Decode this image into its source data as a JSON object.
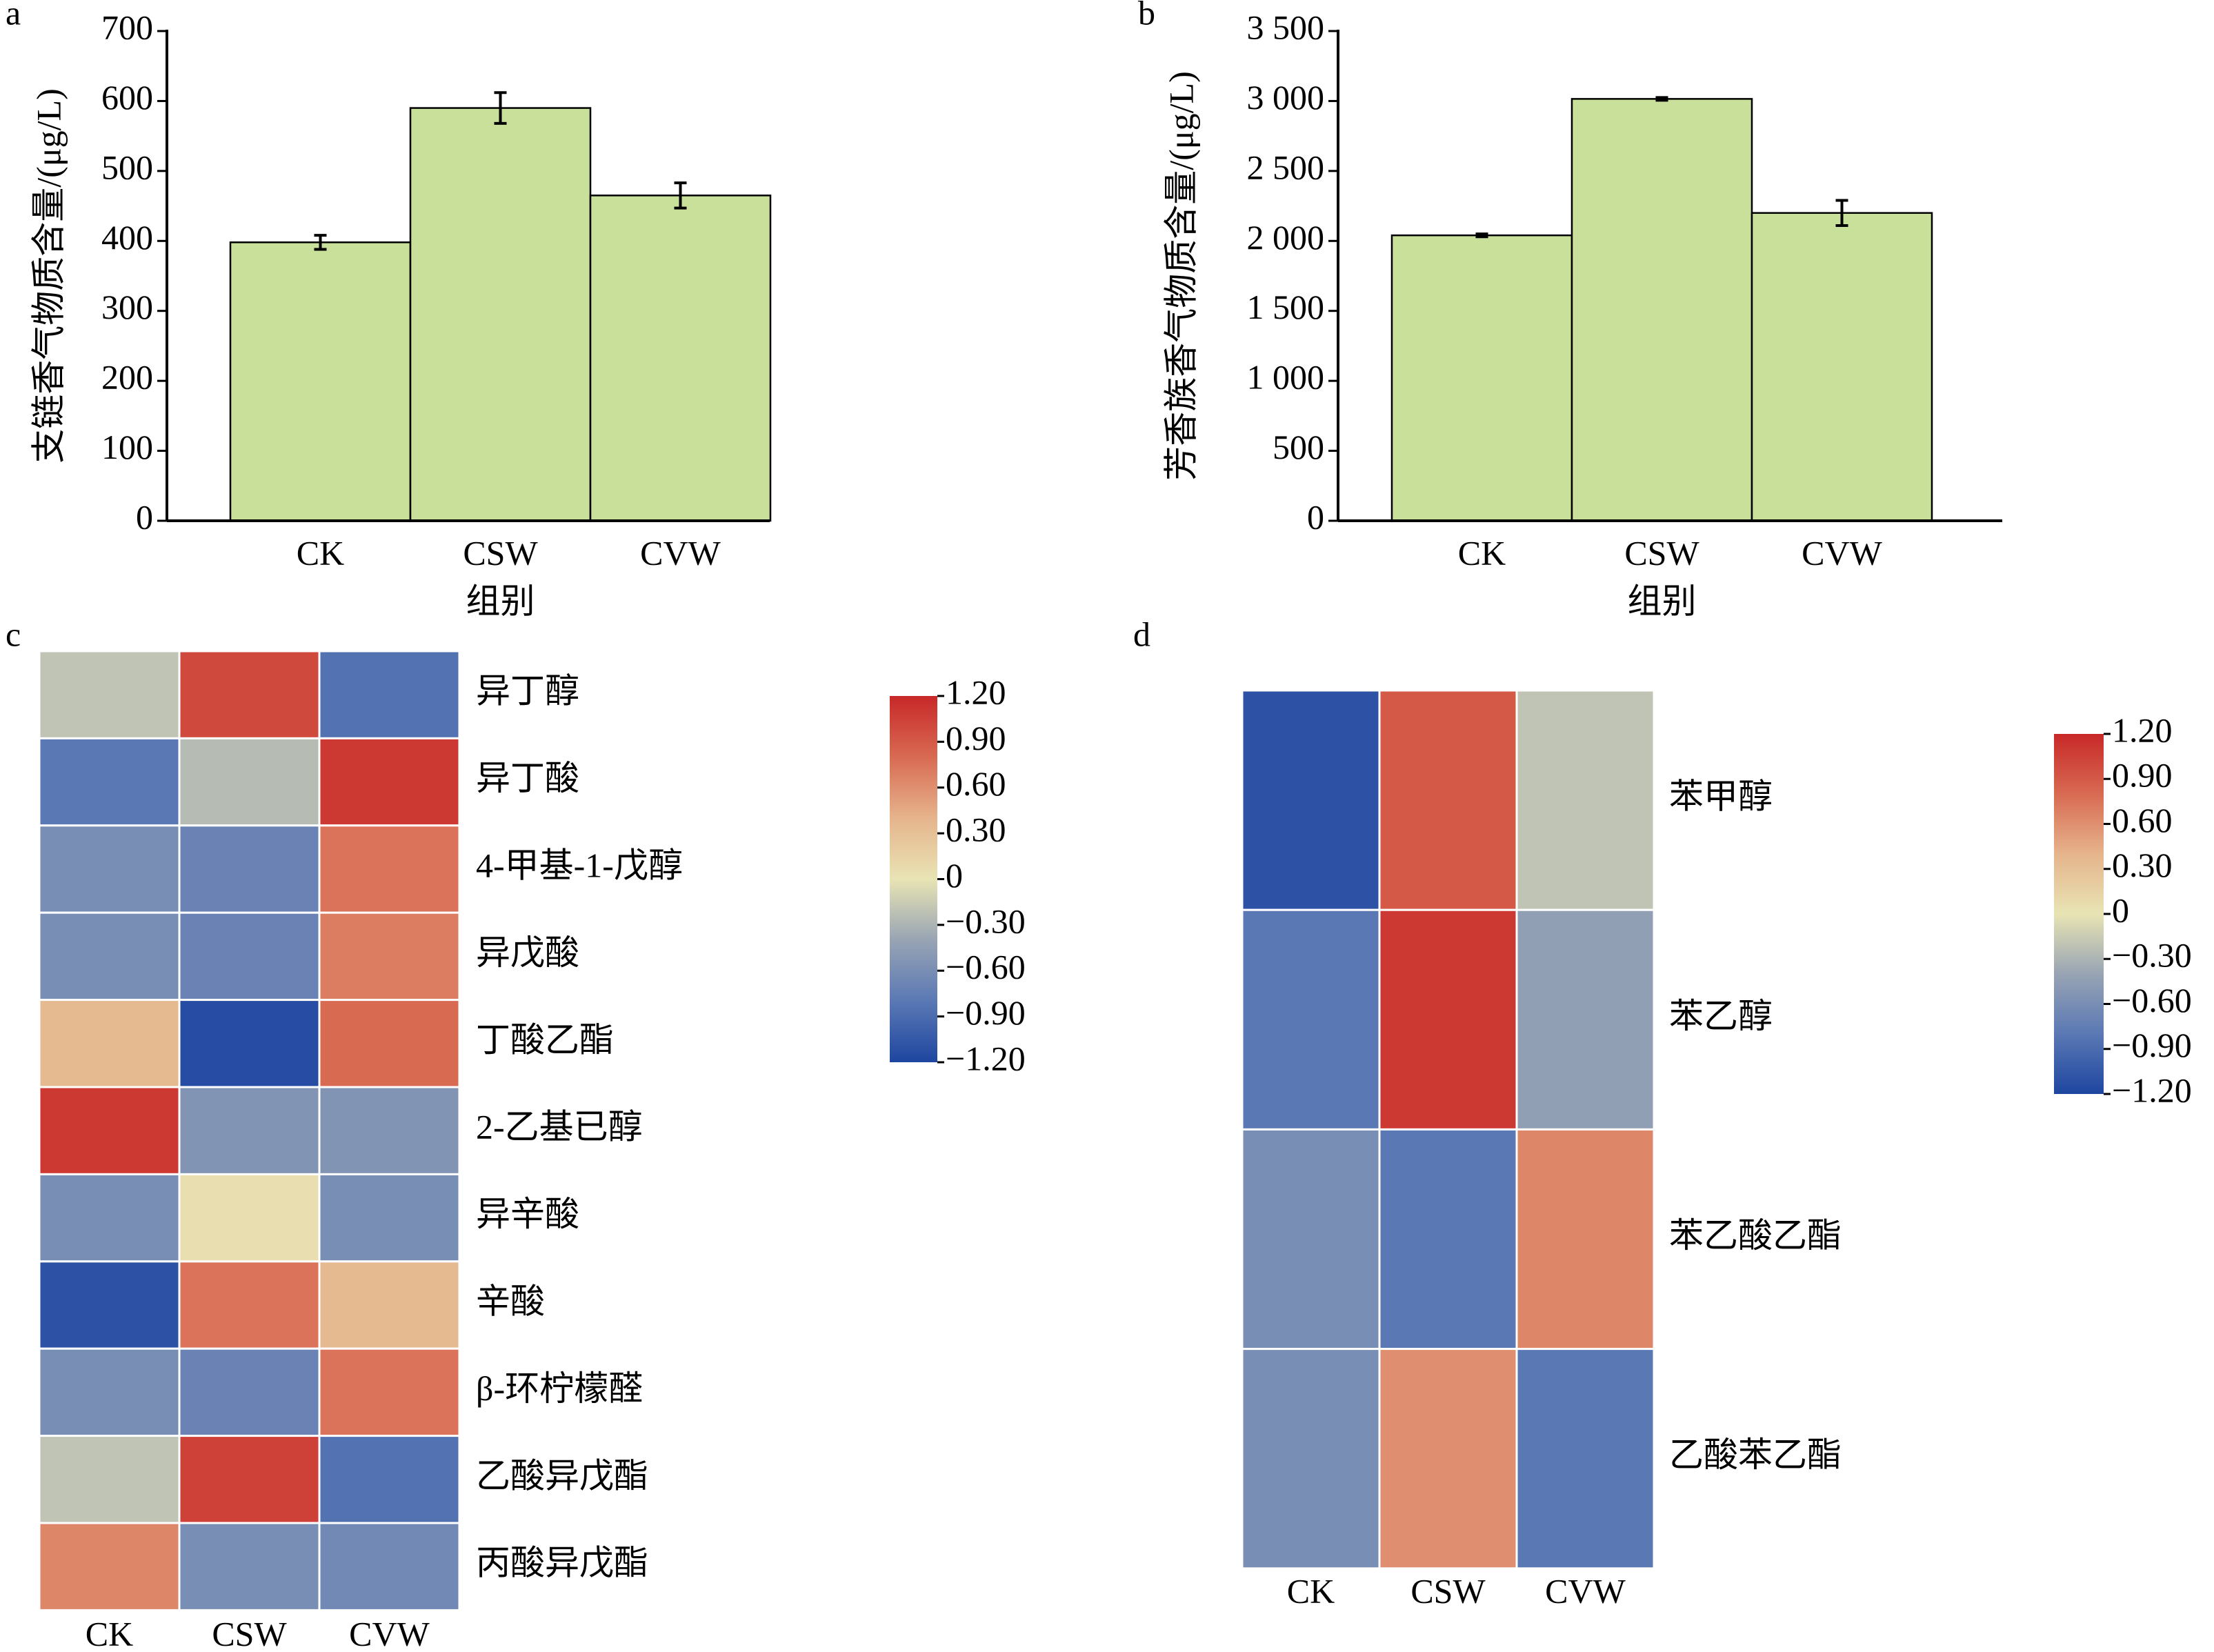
{
  "chart_data": [
    {
      "type": "bar",
      "label": "a",
      "ylabel": "支链香气物质含量/(μg/L)",
      "xlabel": "组别",
      "categories": [
        "CK",
        "CSW",
        "CVW"
      ],
      "values": [
        398,
        590,
        465
      ],
      "errors": [
        10,
        22,
        18
      ],
      "color": "#c9e09a",
      "ylim": [
        0,
        700
      ],
      "yticks": [
        0,
        100,
        200,
        300,
        400,
        500,
        600,
        700
      ]
    },
    {
      "type": "bar",
      "label": "b",
      "ylabel": "芳香族香气物质含量/(μg/L)",
      "xlabel": "组别",
      "categories": [
        "CK",
        "CSW",
        "CVW"
      ],
      "values": [
        2040,
        3015,
        2200
      ],
      "errors": [
        10,
        10,
        90
      ],
      "color": "#c9e09a",
      "ylim": [
        0,
        3500
      ],
      "yticks": [
        0,
        500,
        {
          "value": 1000,
          "label": "1 000"
        },
        {
          "value": 1500,
          "label": "1 500"
        },
        {
          "value": 2000,
          "label": "2 000"
        },
        {
          "value": 2500,
          "label": "2 500"
        },
        {
          "value": 3000,
          "label": "3 000"
        },
        {
          "value": 3500,
          "label": "3 500"
        }
      ]
    },
    {
      "type": "heatmap",
      "label": "c",
      "columns": [
        "CK",
        "CSW",
        "CVW"
      ],
      "rows": [
        "异丁醇",
        "异丁酸",
        "4-甲基-1-戊醇",
        "异戊酸",
        "丁酸乙酯",
        "2-乙基已醇",
        "异辛酸",
        "辛酸",
        "β-环柠檬醛",
        "乙酸异戊酯",
        "丙酸异戊酯"
      ],
      "values": [
        [
          -0.2,
          1.0,
          -0.85
        ],
        [
          -0.8,
          -0.25,
          1.1
        ],
        [
          -0.6,
          -0.7,
          0.75
        ],
        [
          -0.6,
          -0.7,
          0.7
        ],
        [
          0.35,
          -1.15,
          0.8
        ],
        [
          1.1,
          -0.55,
          -0.55
        ],
        [
          -0.6,
          0.05,
          -0.6
        ],
        [
          -1.1,
          0.75,
          0.35
        ],
        [
          -0.6,
          -0.7,
          0.75
        ],
        [
          -0.2,
          1.05,
          -0.85
        ],
        [
          0.65,
          -0.6,
          -0.65
        ]
      ],
      "colors": [
        "#1e46a0",
        "#5a78b4",
        "#98a4b4",
        "#e8e4b4",
        "#e6b48c",
        "#d86a52",
        "#c82828"
      ],
      "zlim": [
        -1.2,
        1.2
      ],
      "zticks": [
        {
          "value": -1.2,
          "label": "−1.20"
        },
        {
          "value": -0.9,
          "label": "−0.90"
        },
        {
          "value": -0.6,
          "label": "−0.60"
        },
        {
          "value": -0.3,
          "label": "−0.30"
        },
        0,
        {
          "value": 0.3,
          "label": "0.30"
        },
        {
          "value": 0.6,
          "label": "0.60"
        },
        {
          "value": 0.9,
          "label": "0.90"
        },
        {
          "value": 1.2,
          "label": "1.20"
        }
      ]
    },
    {
      "type": "heatmap",
      "label": "d",
      "columns": [
        "CK",
        "CSW",
        "CVW"
      ],
      "rows": [
        "苯甲醇",
        "苯乙醇",
        "苯乙酸乙酯",
        "乙酸苯乙酯"
      ],
      "values": [
        [
          -1.1,
          0.9,
          -0.2
        ],
        [
          -0.8,
          1.1,
          -0.45
        ],
        [
          -0.6,
          -0.8,
          0.65
        ],
        [
          -0.6,
          0.6,
          -0.8
        ]
      ],
      "colors": [
        "#1e46a0",
        "#5a78b4",
        "#98a4b4",
        "#e8e4b4",
        "#e6b48c",
        "#d86a52",
        "#c82828"
      ],
      "zlim": [
        -1.2,
        1.2
      ],
      "zticks": [
        {
          "value": -1.2,
          "label": "−1.20"
        },
        {
          "value": -0.9,
          "label": "−0.90"
        },
        {
          "value": -0.6,
          "label": "−0.60"
        },
        {
          "value": -0.3,
          "label": "−0.30"
        },
        0,
        {
          "value": 0.3,
          "label": "0.30"
        },
        {
          "value": 0.6,
          "label": "0.60"
        },
        {
          "value": 0.9,
          "label": "0.90"
        },
        {
          "value": 1.2,
          "label": "1.20"
        }
      ]
    }
  ]
}
